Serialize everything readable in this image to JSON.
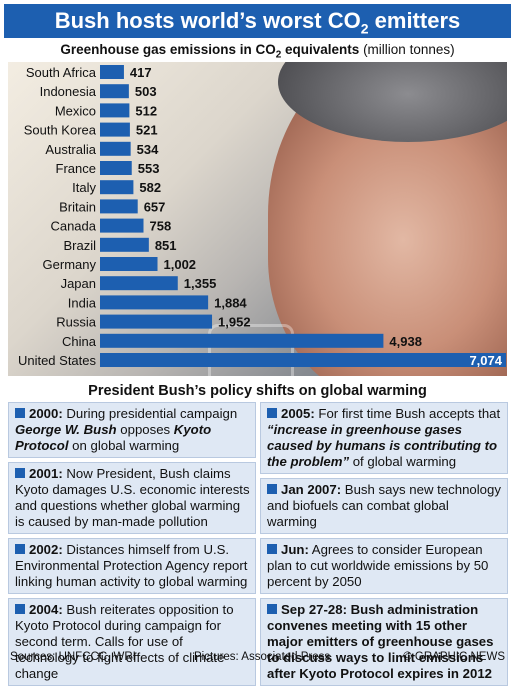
{
  "title": {
    "main": "Bush hosts world’s worst CO",
    "sub2": "2",
    "tail": " emitters"
  },
  "subtitle": {
    "bold": "Greenhouse gas emissions in CO",
    "sub2": "2",
    "bold_tail": " equivalents",
    "units": " (million tonnes)"
  },
  "chart_data": {
    "type": "bar",
    "orientation": "horizontal",
    "categories": [
      "South Africa",
      "Indonesia",
      "Mexico",
      "South Korea",
      "Australia",
      "France",
      "Italy",
      "Britain",
      "Canada",
      "Brazil",
      "Germany",
      "Japan",
      "India",
      "Russia",
      "China",
      "United States"
    ],
    "values": [
      417,
      503,
      512,
      521,
      534,
      553,
      582,
      657,
      758,
      851,
      1002,
      1355,
      1884,
      1952,
      4938,
      7074
    ],
    "value_labels": [
      "417",
      "503",
      "512",
      "521",
      "534",
      "553",
      "582",
      "657",
      "758",
      "851",
      "1,002",
      "1,355",
      "1,884",
      "1,952",
      "4,938",
      "7,074"
    ],
    "title": "Greenhouse gas emissions in CO2 equivalents (million tonnes)",
    "color": "#1d5fb0"
  },
  "policy": {
    "title": "President Bush’s policy shifts on global warming",
    "left": [
      {
        "date": "2000:",
        "text_1": " During presidential campaign ",
        "em_1": "George W. Bush",
        "text_2": " opposes ",
        "em_2": "Kyoto Protocol",
        "text_3": " on global warming"
      },
      {
        "date": "2001:",
        "text": " Now President, Bush claims Kyoto damages U.S. economic interests and questions whether global warming is caused by man-made pollution"
      },
      {
        "date": "2002:",
        "text": " Distances himself from U.S. Environmental Protection Agency report linking human activity to global warming"
      },
      {
        "date": "2004:",
        "text": " Bush reiterates opposition to Kyoto Protocol during campaign for second term. Calls for use of technology to fight effects of climate change"
      }
    ],
    "right": [
      {
        "date": "2005:",
        "text_1": " For first time Bush accepts that ",
        "quote": "“increase in greenhouse gases caused by humans is contributing to the problem”",
        "text_2": " of global warming"
      },
      {
        "date": "Jan 2007:",
        "text": " Bush says new technology and biofuels can combat global warming"
      },
      {
        "date": "Jun:",
        "text": " Agrees to consider European plan to cut worldwide emissions by 50 percent by 2050"
      },
      {
        "date": "Sep 27-28:",
        "text": " Bush administration convenes meeting with 15 other major emitters of greenhouse gases to discuss ways to limit emissions after Kyoto Protocol expires in 2012"
      }
    ]
  },
  "footer": {
    "sources": "Sources: UNFCCC, WRI",
    "pictures": "Pictures: Associated Press",
    "copyright": "© GRAPHIC NEWS"
  }
}
